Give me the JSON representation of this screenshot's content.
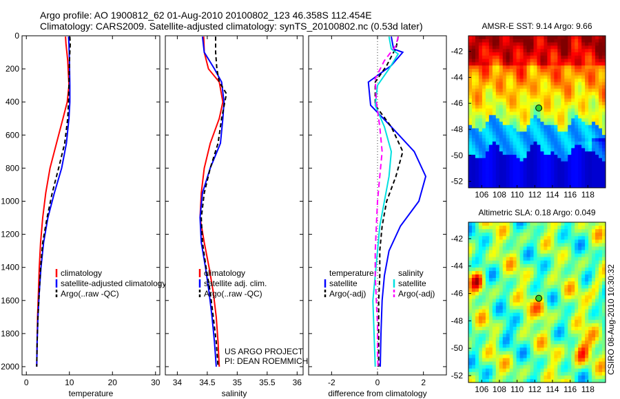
{
  "header": {
    "line1": "Argo profile: AO 1900812_62 01-Aug-2010 20100802_123 46.358S 112.454E",
    "line2": "Climatology: CARS2009. Satellite-adjusted climatology: synTS_20100802.nc (0.53d later)"
  },
  "chart_data": [
    {
      "type": "line",
      "xlabel": "temperature",
      "ylabel": "",
      "xlim": [
        -1,
        31
      ],
      "ylim": [
        2050,
        0
      ],
      "xticks": [
        "0",
        "10",
        "20",
        "30"
      ],
      "yticks": [
        "0",
        "200",
        "400",
        "600",
        "800",
        "1000",
        "1200",
        "1400",
        "1600",
        "1800",
        "2000"
      ],
      "legend": [
        "climatology",
        "satellite-adjusted climatology",
        "Argo(..raw -QC)"
      ],
      "legend_position": "lower-right",
      "series": [
        {
          "name": "climatology",
          "color": "#ff0000",
          "dash": "",
          "x": [
            9.1,
            9.2,
            9.6,
            9.9,
            9.5,
            8.5,
            7.0,
            5.5,
            4.5,
            3.8,
            3.3,
            3.0,
            2.8,
            2.6,
            2.5,
            2.4
          ],
          "y": [
            5,
            50,
            150,
            300,
            400,
            500,
            650,
            800,
            950,
            1100,
            1250,
            1400,
            1550,
            1700,
            1850,
            2000
          ]
        },
        {
          "name": "satellite-adjusted climatology",
          "color": "#0000ff",
          "dash": "",
          "x": [
            9.8,
            9.9,
            10.0,
            10.1,
            10.1,
            9.9,
            9.3,
            8.2,
            6.5,
            5.0,
            4.0,
            3.4,
            3.0,
            2.7,
            2.5,
            2.4
          ],
          "y": [
            5,
            50,
            150,
            300,
            400,
            500,
            650,
            800,
            950,
            1100,
            1250,
            1400,
            1550,
            1700,
            1850,
            2000
          ]
        },
        {
          "name": "Argo(..raw -QC)",
          "color": "#000000",
          "dash": "6,4",
          "x": [
            10.1,
            10.2,
            10.0,
            9.9,
            9.8,
            9.6,
            8.9,
            7.5,
            6.0,
            4.8,
            3.8,
            3.3,
            3.0,
            2.7,
            2.5,
            2.4
          ],
          "y": [
            5,
            50,
            150,
            300,
            400,
            500,
            650,
            800,
            950,
            1100,
            1250,
            1400,
            1550,
            1700,
            1850,
            2000
          ]
        }
      ]
    },
    {
      "type": "line",
      "xlabel": "salinity",
      "xlim": [
        33.8,
        36.1
      ],
      "ylim": [
        2050,
        0
      ],
      "xticks": [
        "34",
        "34.5",
        "35",
        "35.5",
        "36"
      ],
      "legend": [
        "climatology",
        "satellite adj. clim.",
        "Argo(..raw -QC)"
      ],
      "legend_position": "lower-right",
      "series": [
        {
          "name": "climatology",
          "color": "#ff0000",
          "dash": "",
          "x": [
            34.44,
            34.45,
            34.52,
            34.7,
            34.76,
            34.7,
            34.55,
            34.45,
            34.4,
            34.38,
            34.45,
            34.53,
            34.6,
            34.65,
            34.68,
            34.7
          ],
          "y": [
            5,
            100,
            200,
            280,
            400,
            500,
            650,
            800,
            950,
            1100,
            1250,
            1400,
            1550,
            1700,
            1850,
            2000
          ]
        },
        {
          "name": "satellite adj. clim.",
          "color": "#0000ff",
          "dash": "",
          "x": [
            34.42,
            34.45,
            34.62,
            34.74,
            34.78,
            34.76,
            34.72,
            34.55,
            34.42,
            34.38,
            34.4,
            34.47,
            34.53,
            34.58,
            34.62,
            34.65
          ],
          "y": [
            5,
            100,
            200,
            280,
            400,
            500,
            650,
            800,
            950,
            1100,
            1250,
            1400,
            1550,
            1700,
            1850,
            2000
          ]
        },
        {
          "name": "Argo(..raw -QC)",
          "color": "#000000",
          "dash": "6,4",
          "x": [
            34.64,
            34.64,
            34.66,
            34.7,
            34.82,
            34.74,
            34.68,
            34.55,
            34.45,
            34.4,
            34.42,
            34.48,
            34.55,
            34.6,
            34.65,
            34.68
          ],
          "y": [
            5,
            100,
            200,
            280,
            350,
            500,
            650,
            800,
            950,
            1100,
            1250,
            1400,
            1550,
            1700,
            1850,
            2000
          ]
        }
      ],
      "annotations": [
        "US ARGO PROJECT",
        "PI: DEAN ROEMMICH"
      ]
    },
    {
      "type": "line",
      "xlabel": "difference from climatology",
      "xlim": [
        -3,
        3
      ],
      "ylim": [
        2050,
        0
      ],
      "xticks": [
        "-2",
        "0",
        "2"
      ],
      "legend_groups": [
        {
          "title": "temperature",
          "items": [
            "satellite",
            "Argo(-adj)"
          ]
        },
        {
          "title": "salinity",
          "items": [
            "satellite",
            "Argo(-adj)"
          ]
        }
      ],
      "legend_position": "lower-center",
      "series": [
        {
          "name": "temperature satellite",
          "color": "#0000ff",
          "dash": "",
          "x": [
            0.6,
            0.7,
            1.1,
            0.6,
            -0.4,
            -0.3,
            0.6,
            1.6,
            2.1,
            1.8,
            1.0,
            0.5,
            0.3,
            0.2,
            0.15,
            0.12
          ],
          "y": [
            5,
            80,
            100,
            180,
            280,
            420,
            550,
            700,
            850,
            1000,
            1150,
            1300,
            1450,
            1600,
            1800,
            2000
          ]
        },
        {
          "name": "temperature Argo(-adj)",
          "color": "#000000",
          "dash": "6,4",
          "x": [
            0.9,
            0.8,
            0.7,
            0.4,
            -0.1,
            -0.1,
            0.6,
            1.1,
            0.8,
            0.4,
            0.2,
            0.1,
            0.1,
            0.05,
            0.05,
            0.05
          ],
          "y": [
            5,
            80,
            100,
            180,
            280,
            420,
            550,
            700,
            850,
            1000,
            1150,
            1300,
            1450,
            1600,
            1800,
            2000
          ]
        },
        {
          "name": "salinity satellite",
          "color": "#00e0e0",
          "dash": "",
          "x": [
            0.5,
            0.6,
            0.9,
            0.5,
            0.0,
            -0.1,
            0.3,
            0.6,
            0.5,
            0.3,
            0.1,
            0.0,
            -0.1,
            -0.2,
            -0.15,
            -0.1
          ],
          "y": [
            5,
            80,
            110,
            200,
            300,
            420,
            550,
            700,
            850,
            1000,
            1150,
            1300,
            1450,
            1600,
            1800,
            2000
          ]
        },
        {
          "name": "salinity Argo(-adj)",
          "color": "#ff00ff",
          "dash": "8,5",
          "x": [
            0.9,
            0.8,
            0.3,
            -0.1,
            -0.05,
            0.1,
            0.2,
            0.1,
            0.0,
            -0.05,
            -0.1,
            -0.1,
            -0.05,
            0.0,
            0.0,
            0.02
          ],
          "y": [
            5,
            60,
            150,
            260,
            400,
            550,
            700,
            850,
            1000,
            1150,
            1300,
            1450,
            1600,
            1750,
            1900,
            2000
          ]
        }
      ]
    },
    {
      "type": "heatmap",
      "title": "AMSR-E SST: 9.14 Argo: 9.66",
      "xlim": [
        104.5,
        120
      ],
      "ylim": [
        -52.5,
        -40.8
      ],
      "xticks": [
        "106",
        "108",
        "110",
        "112",
        "114",
        "116",
        "118"
      ],
      "yticks": [
        "-42",
        "-44",
        "-46",
        "-48",
        "-50",
        "-52"
      ],
      "marker": {
        "x": 112.454,
        "y": -46.358
      }
    },
    {
      "type": "heatmap",
      "title": "Altimetric SLA: 0.18 Argo: 0.049",
      "xlim": [
        104.5,
        120
      ],
      "ylim": [
        -52.5,
        -40.8
      ],
      "xticks": [
        "106",
        "108",
        "110",
        "112",
        "114",
        "116",
        "118"
      ],
      "yticks": [
        "-42",
        "-44",
        "-46",
        "-48",
        "-50",
        "-52"
      ],
      "marker": {
        "x": 112.454,
        "y": -46.358
      }
    }
  ],
  "side_label": "CSIRO 08-Aug-2010 10:30:32"
}
